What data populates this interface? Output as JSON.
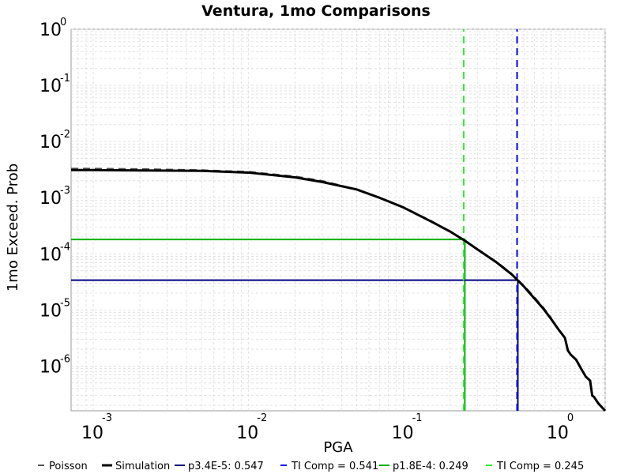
{
  "chart_data": {
    "type": "line",
    "title": "Ventura, 1mo Comparisons",
    "xlabel": "PGA",
    "ylabel": "1mo Exceed. Prob",
    "xscale": "log",
    "yscale": "log",
    "xlim": [
      0.00072,
      2.0
    ],
    "ylim": [
      1.6e-07,
      1.0
    ],
    "grid": true,
    "legend_position": "bottom",
    "x_ticks": [
      {
        "base": "10",
        "exp": "-3",
        "value": 0.001
      },
      {
        "base": "10",
        "exp": "-2",
        "value": 0.01
      },
      {
        "base": "10",
        "exp": "-1",
        "value": 0.1
      },
      {
        "base": "10",
        "exp": "0",
        "value": 1.0
      }
    ],
    "y_ticks": [
      {
        "base": "10",
        "exp": "0",
        "value": 1.0
      },
      {
        "base": "10",
        "exp": "-1",
        "value": 0.1
      },
      {
        "base": "10",
        "exp": "-2",
        "value": 0.01
      },
      {
        "base": "10",
        "exp": "-3",
        "value": 0.001
      },
      {
        "base": "10",
        "exp": "-4",
        "value": 0.0001
      },
      {
        "base": "10",
        "exp": "-5",
        "value": 1e-05
      },
      {
        "base": "10",
        "exp": "-6",
        "value": 1e-06
      }
    ],
    "series": [
      {
        "name": "Poisson",
        "color": "#555555",
        "style": "dashed",
        "x": [
          0.00072,
          0.001,
          0.002,
          0.005,
          0.01,
          0.02,
          0.03,
          0.05,
          0.07,
          0.1,
          0.15,
          0.2,
          0.25,
          0.3,
          0.4,
          0.5,
          0.6,
          0.7,
          0.8,
          0.9
        ],
        "y": [
          0.0033,
          0.0033,
          0.00325,
          0.0031,
          0.0029,
          0.0024,
          0.002,
          0.0014,
          0.001,
          0.00068,
          0.00039,
          0.00025,
          0.000168,
          0.000122,
          7.2e-05,
          4.4e-05,
          2.7e-05,
          1.7e-05,
          1.1e-05,
          7.2e-06
        ]
      },
      {
        "name": "Simulation",
        "color": "#000000",
        "style": "solid",
        "x": [
          0.00072,
          0.001,
          0.002,
          0.005,
          0.01,
          0.02,
          0.03,
          0.05,
          0.07,
          0.1,
          0.15,
          0.2,
          0.25,
          0.3,
          0.4,
          0.5,
          0.6,
          0.7,
          0.8,
          0.9,
          1.0,
          1.1,
          1.15,
          1.2,
          1.3,
          1.4,
          1.5,
          1.6,
          1.65,
          1.7,
          1.8,
          2.0
        ],
        "y": [
          0.0031,
          0.0031,
          0.00305,
          0.003,
          0.0028,
          0.0023,
          0.0019,
          0.0014,
          0.001,
          0.00067,
          0.00038,
          0.00025,
          0.00017,
          0.00012,
          7e-05,
          4.3e-05,
          2.6e-05,
          1.6e-05,
          1.05e-05,
          6.8e-06,
          4.5e-06,
          3.2e-06,
          1.9e-06,
          1.6e-06,
          1.3e-06,
          9e-07,
          6.5e-07,
          5.5e-07,
          3e-07,
          2.8e-07,
          2.2e-07,
          1.6e-07
        ]
      },
      {
        "name": "p3.4E-5: 0.547",
        "color": "#000080",
        "style": "solid",
        "x": [
          0.00072,
          0.547,
          0.547
        ],
        "y": [
          3.4e-05,
          3.4e-05,
          1.6e-07
        ]
      },
      {
        "name": "TI Comp = 0.541",
        "color": "#0000ee",
        "style": "dashed",
        "x": [
          0.541,
          0.541
        ],
        "y": [
          1.6e-07,
          1.0
        ]
      },
      {
        "name": "p1.8E-4: 0.249",
        "color": "#00b000",
        "style": "solid",
        "x": [
          0.00072,
          0.249,
          0.249
        ],
        "y": [
          0.00018,
          0.00018,
          1.6e-07
        ]
      },
      {
        "name": "TI Comp = 0.245",
        "color": "#33ee33",
        "style": "dashed",
        "x": [
          0.245,
          0.245
        ],
        "y": [
          1.6e-07,
          1.0
        ]
      }
    ]
  }
}
